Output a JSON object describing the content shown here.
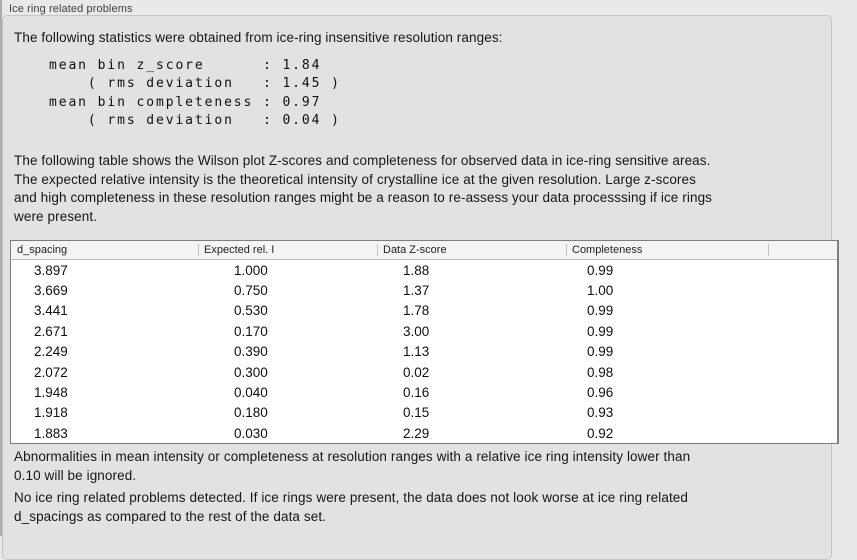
{
  "panel": {
    "title": "Ice ring related problems"
  },
  "intro": "The following statistics were obtained from ice-ring insensitive resolution ranges:",
  "stats_block": "mean bin z_score      : 1.84\n    ( rms deviation   : 1.45 )\nmean bin completeness : 0.97\n    ( rms deviation   : 0.04 )",
  "stats": {
    "mean_bin_z_score": "1.84",
    "z_score_rms_deviation": "1.45",
    "mean_bin_completeness": "0.97",
    "completeness_rms_deviation": "0.04"
  },
  "table_description": "The following table shows the Wilson plot Z-scores and completeness for observed data in ice-ring sensitive areas.\nThe expected relative intensity is the theoretical intensity of crystalline ice at the given resolution. Large z-scores\nand high completeness in these resolution ranges might be a reason to re-assess your data processsing if ice rings\nwere present.",
  "table": {
    "columns": [
      "d_spacing",
      "Expected rel. I",
      "Data Z-score",
      "Completeness"
    ],
    "rows": [
      [
        "3.897",
        "1.000",
        "1.88",
        "0.99"
      ],
      [
        "3.669",
        "0.750",
        "1.37",
        "1.00"
      ],
      [
        "3.441",
        "0.530",
        "1.78",
        "0.99"
      ],
      [
        "2.671",
        "0.170",
        "3.00",
        "0.99"
      ],
      [
        "2.249",
        "0.390",
        "1.13",
        "0.99"
      ],
      [
        "2.072",
        "0.300",
        "0.02",
        "0.98"
      ],
      [
        "1.948",
        "0.040",
        "0.16",
        "0.96"
      ],
      [
        "1.918",
        "0.180",
        "0.15",
        "0.93"
      ],
      [
        "1.883",
        "0.030",
        "2.29",
        "0.92"
      ]
    ]
  },
  "note_ignore": "Abnormalities in mean intensity or completeness at resolution ranges with a relative ice ring intensity lower than\n0.10 will be ignored.",
  "conclusion": "No ice ring related problems detected. If ice rings were present, the data does not look worse at ice ring related\nd_spacings as compared to the rest of the data set.",
  "colors": {
    "page_background": "#e9e9e9",
    "groupbox_background": "#e2e2e2",
    "groupbox_border": "#c5c5c5",
    "table_background": "#ffffff",
    "table_border": "#7e7e7e",
    "table_header_background": "#f4f4f4",
    "text": "#161616"
  }
}
